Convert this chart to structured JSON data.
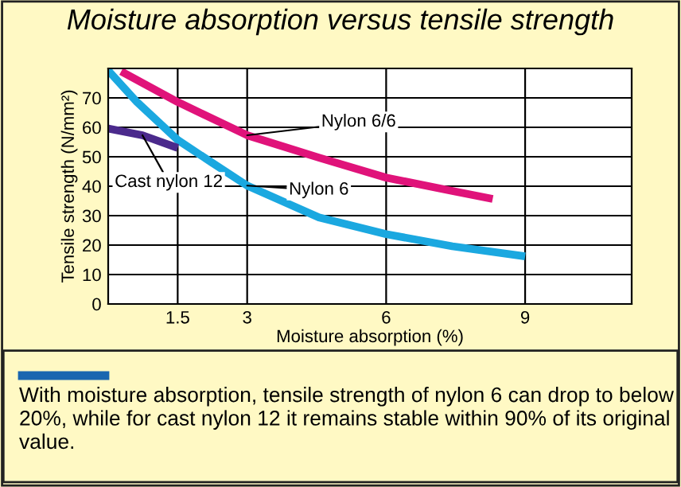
{
  "chart_data": {
    "type": "line",
    "title": "Moisture absorption versus tensile strength",
    "xlabel": "Moisture absorption (%)",
    "ylabel": "Tensile strength (N/mm²)",
    "xlim": [
      0,
      11.3
    ],
    "xticks": [
      1.5,
      3,
      6,
      9
    ],
    "ylim": [
      0,
      80
    ],
    "yticks": [
      0,
      10,
      20,
      30,
      40,
      50,
      60,
      70,
      {
        "value": 80,
        "label": null
      }
    ],
    "grid": true,
    "legend": false,
    "marker": "none",
    "line_style": "solid",
    "series": [
      {
        "name": "Nylon 6/6",
        "color": "#e0137a",
        "x": [
          0.28,
          1.5,
          3,
          4.55,
          6,
          7.43,
          8.3
        ],
        "values": [
          79,
          68.6,
          57.3,
          49.7,
          42.9,
          38.4,
          35.7
        ]
      },
      {
        "name": "Nylon 6",
        "color": "#1ba8e0",
        "x": [
          0,
          0.62,
          1.5,
          2.24,
          3,
          4.55,
          6,
          7.43,
          9
        ],
        "values": [
          79.3,
          68.6,
          55.7,
          48,
          40.2,
          29.4,
          23.7,
          19.6,
          16.2
        ]
      },
      {
        "name": "Cast nylon 12",
        "color": "#4b2a8c",
        "x": [
          0,
          0.74,
          1.5
        ],
        "values": [
          59.6,
          57.3,
          53
        ]
      }
    ],
    "annotations": [
      "With moisture absorption, tensile strength of nylon 6 can drop to below 20%, while for cast nylon 12 it remains stable within 90% of its original value."
    ]
  }
}
